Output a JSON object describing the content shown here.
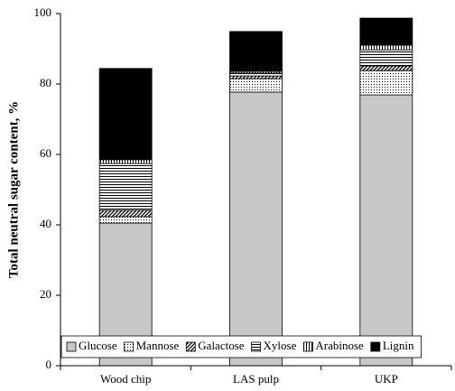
{
  "chart_data": {
    "type": "stacked-bar",
    "y_label": "Total neutral sugar content, %",
    "categories": [
      "Wood chip",
      "LAS pulp",
      "UKP"
    ],
    "series": [
      {
        "name": "Glucose",
        "color": "#c8c8c8",
        "pattern": "solid",
        "values": [
          40.5,
          77.7,
          76.9
        ]
      },
      {
        "name": "Mannose",
        "color": "#000000",
        "pattern": "dots",
        "values": [
          1.8,
          3.8,
          6.9
        ]
      },
      {
        "name": "Galactose",
        "color": "#000000",
        "pattern": "diagonal",
        "values": [
          1.8,
          0.8,
          1.3
        ]
      },
      {
        "name": "Xylose",
        "color": "#000000",
        "pattern": "horizontal",
        "values": [
          13.3,
          0.8,
          4.6
        ]
      },
      {
        "name": "Arabinose",
        "color": "#000000",
        "pattern": "vertical",
        "values": [
          1.1,
          0.5,
          1.3
        ]
      },
      {
        "name": "Lignin",
        "color": "#000000",
        "pattern": "solid",
        "values": [
          25.9,
          11.3,
          7.7
        ]
      }
    ],
    "ylim": [
      0,
      100
    ],
    "yticks": [
      0,
      20,
      40,
      60,
      80,
      100
    ],
    "grid": false,
    "legend": "bottom"
  }
}
